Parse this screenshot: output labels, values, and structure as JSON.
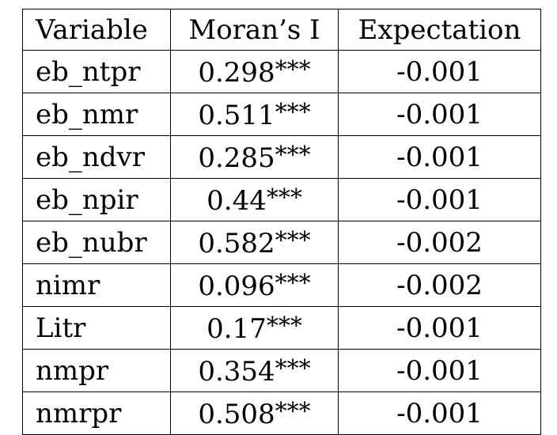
{
  "table": {
    "headers": [
      "Variable",
      "Moran’s I",
      "Expectation"
    ],
    "rows": [
      {
        "variable": "eb_ntpr",
        "moran": "0.298",
        "sig": "***",
        "expectation": "-0.001"
      },
      {
        "variable": "eb_nmr",
        "moran": "0.511",
        "sig": "***",
        "expectation": "-0.001"
      },
      {
        "variable": "eb_ndvr",
        "moran": "0.285",
        "sig": "***",
        "expectation": "-0.001"
      },
      {
        "variable": "eb_npir",
        "moran": "0.44",
        "sig": "***",
        "expectation": "-0.001"
      },
      {
        "variable": "eb_nubr",
        "moran": "0.582",
        "sig": "***",
        "expectation": "-0.002"
      },
      {
        "variable": "nimr",
        "moran": "0.096",
        "sig": "***",
        "expectation": "-0.002"
      },
      {
        "variable": "Litr",
        "moran": "0.17",
        "sig": "***",
        "expectation": "-0.001"
      },
      {
        "variable": "nmpr",
        "moran": "0.354",
        "sig": "***",
        "expectation": "-0.001"
      },
      {
        "variable": "nmrpr",
        "moran": "0.508",
        "sig": "***",
        "expectation": "-0.001"
      }
    ]
  }
}
